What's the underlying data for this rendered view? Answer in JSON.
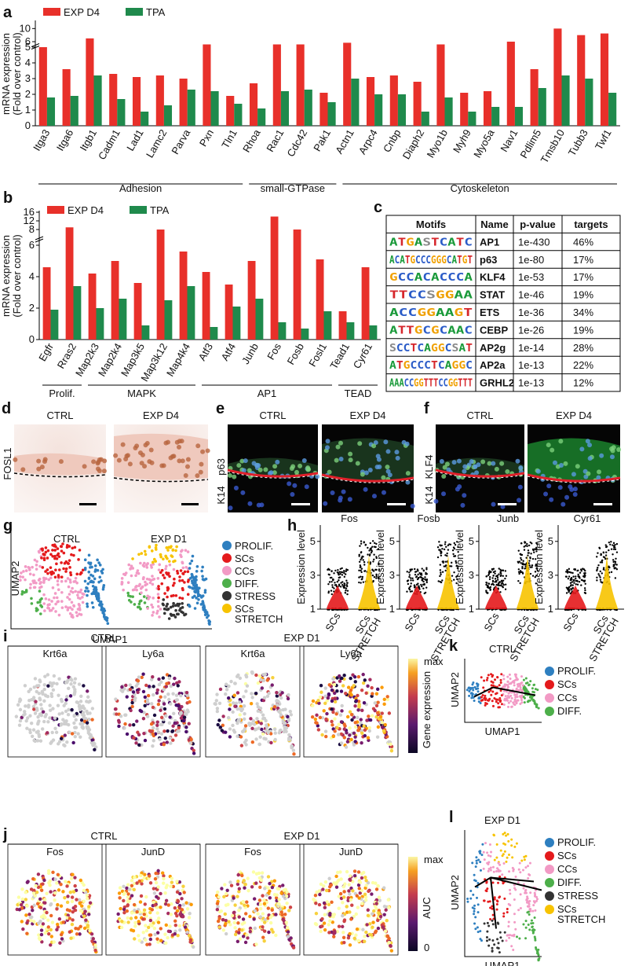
{
  "chart_data": [
    {
      "type": "bar",
      "letter": "a",
      "y_label": [
        "mRNA expression",
        "(Fold over control)"
      ],
      "categories": [
        "Itga3",
        "Itga6",
        "Itgb1",
        "Cadm1",
        "Lad1",
        "Lamc2",
        "Parva",
        "Pxn",
        "Tln1",
        "Rhoa",
        "Rac1",
        "Cdc42",
        "Pak1",
        "Actn1",
        "Arpc4",
        "Cnbp",
        "Diaph2",
        "Myo1b",
        "Myh9",
        "Myo5a",
        "Nav1",
        "Pdlim5",
        "Tmsb10",
        "Tubb3",
        "Twf1"
      ],
      "series": [
        {
          "name": "EXP D4",
          "color": "#e8302a",
          "values": [
            5.0,
            3.6,
            7.0,
            3.3,
            3.1,
            3.2,
            3.0,
            5.5,
            1.9,
            2.7,
            5.5,
            5.5,
            2.1,
            5.8,
            3.1,
            3.2,
            2.8,
            5.5,
            2.1,
            2.2,
            6.0,
            3.6,
            10.0,
            8.0,
            8.5
          ]
        },
        {
          "name": "TPA",
          "color": "#1f8a4c",
          "values": [
            1.8,
            1.9,
            3.2,
            1.7,
            0.9,
            1.3,
            2.3,
            2.2,
            1.4,
            1.1,
            2.2,
            2.3,
            1.5,
            3.0,
            2.0,
            2.0,
            0.9,
            1.8,
            0.9,
            1.2,
            1.2,
            2.4,
            3.2,
            3.0,
            2.1
          ]
        }
      ],
      "ylim": [
        0,
        12
      ],
      "yticks": [
        0,
        1,
        2,
        3,
        4,
        5,
        6,
        10
      ],
      "axis_break": 5,
      "groups": [
        "Adhesion",
        "small-GTPase",
        "Cytoskeleton"
      ]
    },
    {
      "type": "bar",
      "letter": "b",
      "y_label": [
        "mRNA expression",
        "(Fold over control)"
      ],
      "categories": [
        "Egfr",
        "Rras2",
        "Map2k3",
        "Map2k4",
        "Map3k5",
        "Map3k12",
        "Map4k4",
        "Atf3",
        "Atf4",
        "Junb",
        "Fos",
        "Fosb",
        "Fosl1",
        "Tead1",
        "Cyr61"
      ],
      "series": [
        {
          "name": "EXP D4",
          "color": "#e8302a",
          "values": [
            4.6,
            9.0,
            4.2,
            5.0,
            3.6,
            8.0,
            5.6,
            4.3,
            3.5,
            5.0,
            14.0,
            8.0,
            5.1,
            1.8,
            4.6
          ]
        },
        {
          "name": "TPA",
          "color": "#1f8a4c",
          "values": [
            1.9,
            3.4,
            2.0,
            2.6,
            0.9,
            2.5,
            3.4,
            0.8,
            2.1,
            2.6,
            1.1,
            0.7,
            1.8,
            1.1,
            0.9
          ]
        }
      ],
      "ylim": [
        0,
        16
      ],
      "yticks": [
        0,
        2,
        4,
        6,
        8,
        12,
        16
      ],
      "axis_break": 6,
      "groups": [
        "Prolif.",
        "MAPK",
        "AP1",
        "TEAD"
      ]
    }
  ],
  "table": {
    "letter": "c",
    "header": [
      "Motifs",
      "Name",
      "p-value",
      "targets"
    ],
    "rows": [
      [
        "ATGASTCATC",
        "AP1",
        "1e-430",
        "46%"
      ],
      [
        "ACATGCCCGGGCATGT",
        "p63",
        "1e-80",
        "17%"
      ],
      [
        "GCCACACCCA",
        "KLF4",
        "1e-53",
        "17%"
      ],
      [
        "TTCCSGGAA",
        "STAT",
        "1e-46",
        "19%"
      ],
      [
        "ACCGGAAGT",
        "ETS",
        "1e-36",
        "34%"
      ],
      [
        "ATTGCGCAAC",
        "CEBP",
        "1e-26",
        "19%"
      ],
      [
        "SCCTCAGGCSAT",
        "AP2g",
        "1e-14",
        "28%"
      ],
      [
        "ATGCCCTCAGGC",
        "AP2a",
        "1e-13",
        "22%"
      ],
      [
        "AAACCGGTTTCCGGTTT",
        "GRHL2",
        "1e-13",
        "12%"
      ]
    ]
  },
  "images": [
    {
      "letter": "d",
      "stain": [
        "FOSL1"
      ],
      "conditions": [
        "CTRL",
        "EXP D4"
      ]
    },
    {
      "letter": "e",
      "stain": [
        "K14",
        "p63"
      ],
      "conditions": [
        "CTRL",
        "EXP D4"
      ]
    },
    {
      "letter": "f",
      "stain": [
        "K14",
        "KLF4"
      ],
      "conditions": [
        "CTRL",
        "EXP D4"
      ]
    }
  ],
  "umap": {
    "letter": "g",
    "conditions": [
      "CTRL",
      "EXP D1"
    ],
    "x_label": "UMAP1",
    "y_label": "UMAP2",
    "legend": [
      {
        "name": "PROLIF.",
        "color": "#2e7fc0"
      },
      {
        "name": "SCs",
        "color": "#e41a1c"
      },
      {
        "name": "CCs",
        "color": "#f29ac5"
      },
      {
        "name": "DIFF.",
        "color": "#4daf4a"
      },
      {
        "name": "STRESS",
        "color": "#333333"
      },
      {
        "name": "SCs STRETCH",
        "color": "#f7c300"
      }
    ]
  },
  "violins": {
    "letter": "h",
    "y_label": "Expression level",
    "yticks": [
      1,
      3,
      5
    ],
    "groups": [
      "SCs",
      "SCs STRETCH"
    ],
    "genes": [
      "Fos",
      "Fosb",
      "Junb",
      "Cyr61"
    ]
  },
  "feature_i": {
    "letter": "i",
    "conditions": [
      "CTRL",
      "EXP D1"
    ],
    "genes": [
      "Krt6a",
      "Ly6a"
    ],
    "colorbar": "Gene expression",
    "max": "max"
  },
  "feature_j": {
    "letter": "j",
    "conditions": [
      "CTRL",
      "EXP D1"
    ],
    "genes": [
      "Fos",
      "JunD"
    ],
    "colorbar": "AUC",
    "max": "max",
    "min": "0"
  },
  "trajectory_k": {
    "letter": "k",
    "title": "CTRL",
    "x_label": "UMAP1",
    "y_label": "UMAP2",
    "legend": [
      "PROLIF.",
      "SCs",
      "CCs",
      "DIFF."
    ]
  },
  "trajectory_l": {
    "letter": "l",
    "title": "EXP D1",
    "x_label": "UMAP1",
    "y_label": "UMAP2",
    "legend": [
      "PROLIF.",
      "SCs",
      "CCs",
      "DIFF.",
      "STRESS",
      "SCs STRETCH"
    ]
  }
}
